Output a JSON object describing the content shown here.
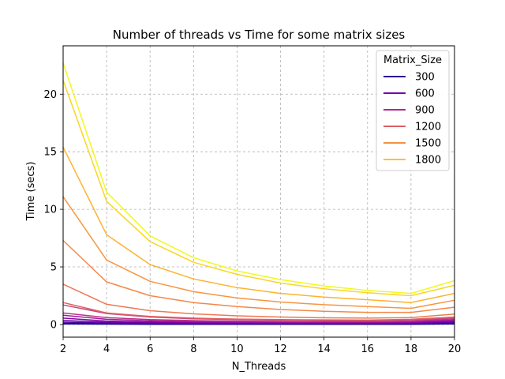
{
  "chart_data": {
    "type": "line",
    "title": "Number of threads vs Time for some matrix sizes",
    "xlabel": "N_Threads",
    "ylabel": "Time (secs)",
    "xlim": [
      2,
      20
    ],
    "ylim": [
      -1.1,
      24.2
    ],
    "xticks": [
      2,
      4,
      6,
      8,
      10,
      12,
      14,
      16,
      18,
      20
    ],
    "yticks": [
      0,
      5,
      10,
      15,
      20
    ],
    "grid": true,
    "legend": {
      "title": "Matrix_Size",
      "placement": "top-right"
    },
    "legend_entries": [
      {
        "label": "300",
        "color": "#2c0594"
      },
      {
        "label": "600",
        "color": "#7401a8"
      },
      {
        "label": "900",
        "color": "#b32a8f"
      },
      {
        "label": "1200",
        "color": "#dd5e66"
      },
      {
        "label": "1500",
        "color": "#f68f44"
      },
      {
        "label": "1800",
        "color": "#fdc328"
      }
    ],
    "x": [
      2,
      4,
      6,
      8,
      10,
      12,
      14,
      16,
      18,
      20
    ],
    "series": [
      {
        "color": "#0d0887",
        "values": [
          0.05,
          0.03,
          0.02,
          0.02,
          0.02,
          0.02,
          0.02,
          0.02,
          0.02,
          0.05
        ]
      },
      {
        "color": "#2c0594",
        "values": [
          0.1,
          0.06,
          0.05,
          0.04,
          0.04,
          0.04,
          0.04,
          0.04,
          0.05,
          0.1
        ]
      },
      {
        "color": "#4c02a1",
        "values": [
          0.2,
          0.12,
          0.09,
          0.08,
          0.07,
          0.07,
          0.07,
          0.07,
          0.08,
          0.15
        ]
      },
      {
        "color": "#6a00a8",
        "values": [
          0.35,
          0.2,
          0.15,
          0.13,
          0.12,
          0.11,
          0.11,
          0.11,
          0.12,
          0.22
        ]
      },
      {
        "color": "#8606a6",
        "values": [
          0.55,
          0.3,
          0.22,
          0.18,
          0.16,
          0.15,
          0.15,
          0.15,
          0.17,
          0.3
        ]
      },
      {
        "color": "#a01a9c",
        "values": [
          0.8,
          0.45,
          0.32,
          0.26,
          0.23,
          0.21,
          0.2,
          0.2,
          0.23,
          0.4
        ]
      },
      {
        "color": "#b83289",
        "values": [
          1.0,
          0.6,
          0.42,
          0.34,
          0.3,
          0.27,
          0.26,
          0.26,
          0.3,
          0.5
        ]
      },
      {
        "color": "#cc4778",
        "values": [
          1.7,
          0.95,
          0.65,
          0.5,
          0.42,
          0.38,
          0.36,
          0.35,
          0.4,
          0.55
        ]
      },
      {
        "color": "#de5f65",
        "values": [
          1.9,
          1.0,
          0.7,
          0.55,
          0.47,
          0.42,
          0.4,
          0.38,
          0.45,
          0.65
        ]
      },
      {
        "color": "#ed7953",
        "values": [
          3.5,
          1.75,
          1.2,
          0.92,
          0.75,
          0.65,
          0.58,
          0.55,
          0.6,
          0.9
        ]
      },
      {
        "color": "#f48849",
        "values": [
          7.3,
          3.7,
          2.5,
          1.9,
          1.55,
          1.3,
          1.15,
          1.05,
          1.05,
          1.5
        ]
      },
      {
        "color": "#f89540",
        "values": [
          11.1,
          5.6,
          3.75,
          2.85,
          2.3,
          1.95,
          1.72,
          1.55,
          1.4,
          2.1
        ]
      },
      {
        "color": "#fdb32f",
        "values": [
          15.4,
          7.8,
          5.2,
          3.95,
          3.2,
          2.7,
          2.38,
          2.15,
          1.9,
          2.7
        ]
      },
      {
        "color": "#fbd524",
        "values": [
          21.2,
          10.7,
          7.2,
          5.4,
          4.35,
          3.6,
          3.1,
          2.75,
          2.5,
          3.4
        ]
      },
      {
        "color": "#f0f921",
        "values": [
          22.7,
          11.5,
          7.7,
          5.8,
          4.65,
          3.9,
          3.35,
          2.95,
          2.7,
          3.8
        ]
      }
    ]
  }
}
